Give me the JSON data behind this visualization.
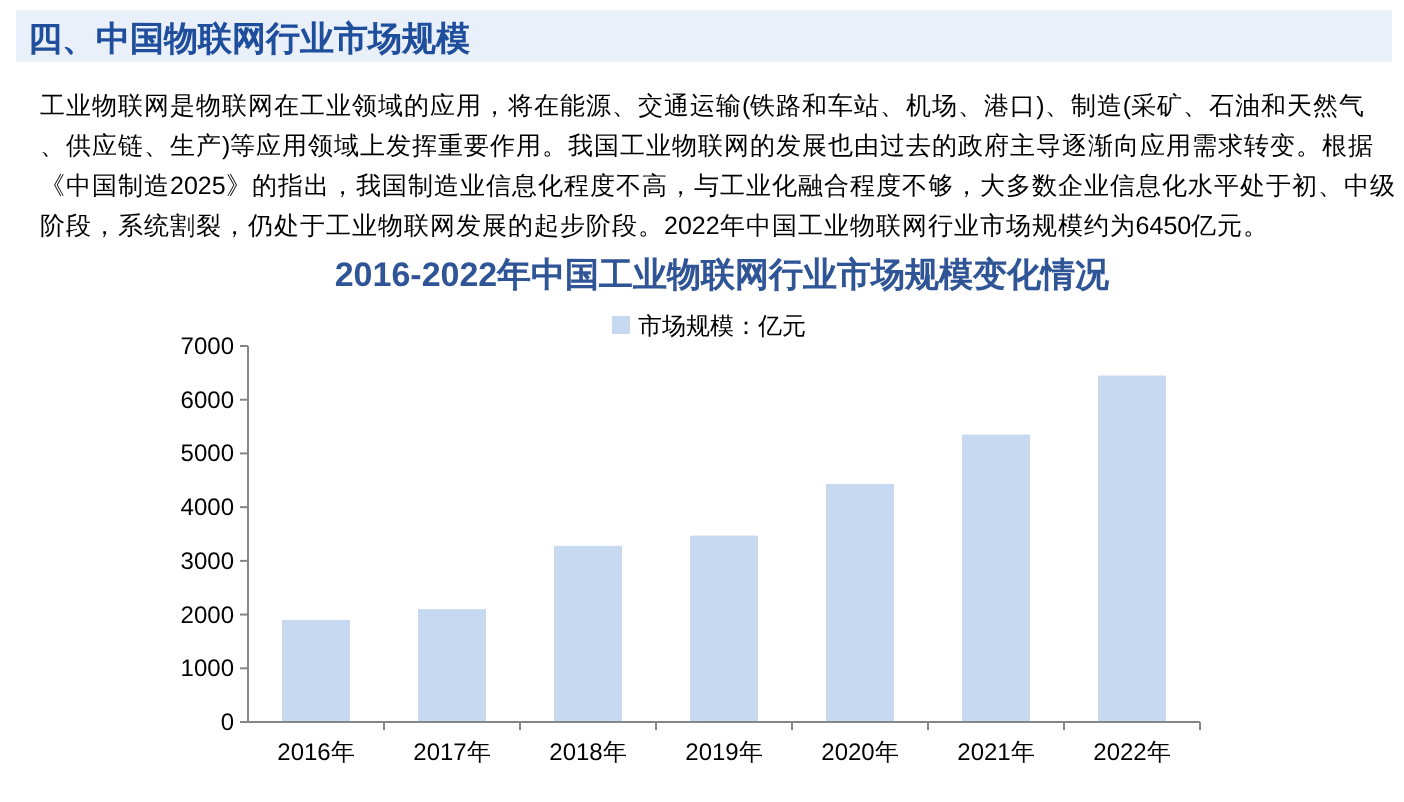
{
  "chart_data": {
    "type": "bar",
    "title": "2016-2022年中国工业物联网行业市场规模变化情况",
    "annotations": [
      "四、中国物联网行业市场规模",
      "工业物联网是物联网在工业领域的应用，将在能源、交通运输(铁路和车站、机场、港口)、制造(采矿、石油和天然气、供应链、生产)等应用领域上发挥重要作用。我国工业物联网的发展也由过去的政府主导逐渐向应用需求转变。根据《中国制造2025》的指出，我国制造业信息化程度不高，与工业化融合程度不够，大多数企业信息化水平处于初、中级阶段，系统割裂，仍处于工业物联网发展的起步阶段。2022年中国工业物联网行业市场规模约为6450亿元。"
    ],
    "categories": [
      "2016年",
      "2017年",
      "2018年",
      "2019年",
      "2020年",
      "2021年",
      "2022年"
    ],
    "series": [
      {
        "name": "市场规模：亿元",
        "color": "#c6d9f1",
        "values": [
          1900,
          2100,
          3280,
          3470,
          4430,
          5350,
          6450
        ]
      }
    ],
    "ylim": [
      0,
      7000
    ],
    "yticks": [
      0,
      1000,
      2000,
      3000,
      4000,
      5000,
      6000,
      7000
    ],
    "grid": false,
    "legend": "top"
  }
}
